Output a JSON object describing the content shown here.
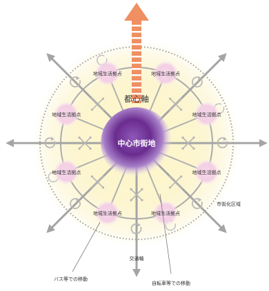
{
  "diagram": {
    "center_label": "中心市街地",
    "axis_label": "都心軸",
    "hub_label": "地域生活拠点",
    "hub_count": 8,
    "annotations": {
      "urbanization_area": "市街化区域",
      "transport_axis": "交通軸",
      "bus_movement": "バス等での移動",
      "bicycle_movement": "自転車等での移動"
    },
    "colors": {
      "core": "#6a2c8f",
      "core_light": "#d9c6ee",
      "glow": "#fbf3b8",
      "hub": "#f3cfe4",
      "ring": "#a9a9a9",
      "arrow": "#a4a4a4",
      "axis_arrow": "#ef8f62"
    },
    "icons": {
      "loop": "circular-arrow-icon",
      "cross": "four-way-arrow-icon"
    }
  }
}
